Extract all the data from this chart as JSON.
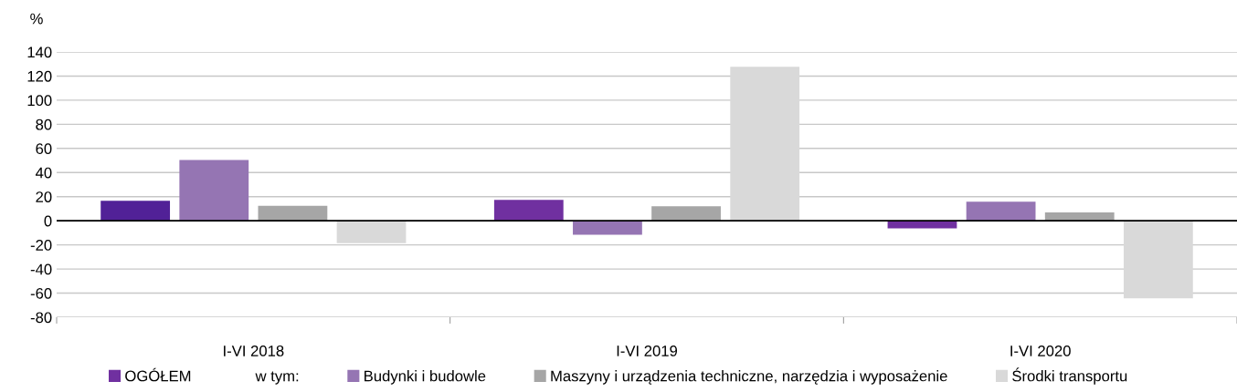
{
  "chart_data": {
    "type": "bar",
    "ylabel": "%",
    "categories": [
      "I-VI 2018",
      "I-VI 2019",
      "I-VI 2020"
    ],
    "series": [
      {
        "name": "OGÓŁEM",
        "color": "#7030a0",
        "colors": [
          "#512197",
          "#7030a0",
          "#7030a0"
        ],
        "values": [
          16.5,
          17.3,
          -6.3
        ]
      },
      {
        "name": "Budynki i budowle",
        "color": "#9575b3",
        "values": [
          50.5,
          -11.5,
          15.8
        ]
      },
      {
        "name": "Maszyny i urządzenia techniczne, narzędzia i wyposażenie",
        "color": "#a6a6a6",
        "values": [
          12.5,
          12,
          7
        ]
      },
      {
        "name": "Środki transportu",
        "color": "#d9d9d9",
        "values": [
          -18.5,
          127.8,
          -64.3
        ]
      }
    ],
    "annotations": [
      "w tym:"
    ],
    "ylim": [
      -80,
      140
    ],
    "yticks": [
      -80,
      -60,
      -40,
      -20,
      0,
      20,
      40,
      60,
      80,
      100,
      120,
      140
    ],
    "grid": "y",
    "legend": "bottom"
  }
}
